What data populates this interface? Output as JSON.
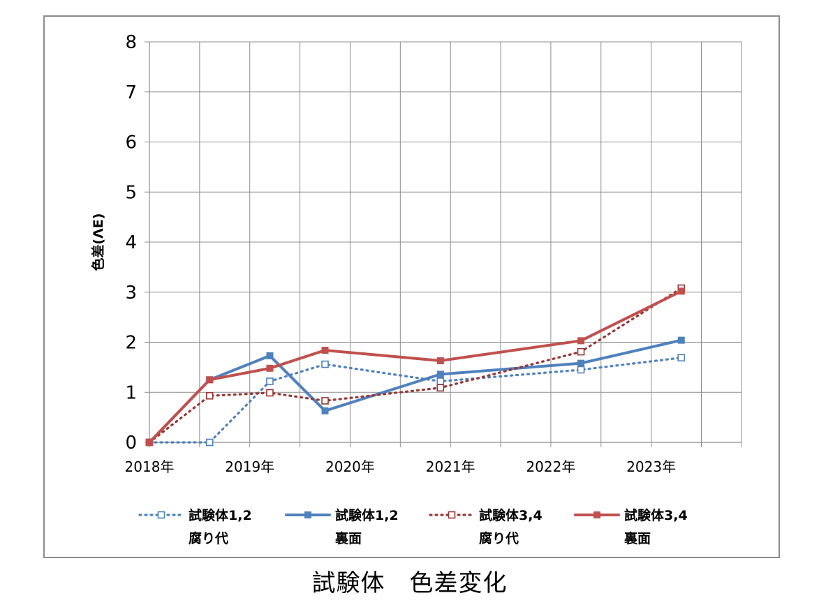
{
  "caption": "試験体　色差変化",
  "chart_data": {
    "type": "line",
    "title": "",
    "xlabel": "",
    "ylabel": "色差(ΛE)",
    "ylim": [
      0,
      8
    ],
    "yticks": [
      "0",
      "1",
      "2",
      "3",
      "4",
      "5",
      "6",
      "7",
      "8"
    ],
    "x_ticks": [
      "2018年",
      "2019年",
      "2020年",
      "2021年",
      "2022年",
      "2023年"
    ],
    "xlim": [
      2018,
      2023.9
    ],
    "grid": true,
    "legend_position": "bottom",
    "series": [
      {
        "name_line1": "試験体1,2",
        "name_line2": "腐り代",
        "color": "#4f81bd",
        "style": "dotted",
        "marker": "square-open",
        "points": [
          [
            2018.0,
            0.0
          ],
          [
            2018.6,
            0.0
          ],
          [
            2019.2,
            1.22
          ],
          [
            2019.75,
            1.56
          ],
          [
            2020.9,
            1.22
          ],
          [
            2022.3,
            1.45
          ],
          [
            2023.3,
            1.69
          ]
        ]
      },
      {
        "name_line1": "試験体1,2",
        "name_line2": "裏面",
        "color": "#4f81bd",
        "style": "solid",
        "marker": "square-filled",
        "points": [
          [
            2018.0,
            0.0
          ],
          [
            2018.6,
            1.25
          ],
          [
            2019.2,
            1.73
          ],
          [
            2019.75,
            0.63
          ],
          [
            2020.9,
            1.36
          ],
          [
            2022.3,
            1.58
          ],
          [
            2023.3,
            2.04
          ]
        ]
      },
      {
        "name_line1": "試験体3,4",
        "name_line2": "腐り代",
        "color": "#953735",
        "style": "dotted",
        "marker": "square-open",
        "points": [
          [
            2018.0,
            0.0
          ],
          [
            2018.6,
            0.93
          ],
          [
            2019.2,
            0.99
          ],
          [
            2019.75,
            0.83
          ],
          [
            2020.9,
            1.09
          ],
          [
            2022.3,
            1.81
          ],
          [
            2023.3,
            3.08
          ]
        ]
      },
      {
        "name_line1": "試験体3,4",
        "name_line2": "裏面",
        "color": "#c0504d",
        "style": "solid",
        "marker": "square-filled",
        "points": [
          [
            2018.0,
            0.0
          ],
          [
            2018.6,
            1.25
          ],
          [
            2019.2,
            1.48
          ],
          [
            2019.75,
            1.84
          ],
          [
            2020.9,
            1.63
          ],
          [
            2022.3,
            2.03
          ],
          [
            2023.3,
            3.02
          ]
        ]
      }
    ]
  }
}
